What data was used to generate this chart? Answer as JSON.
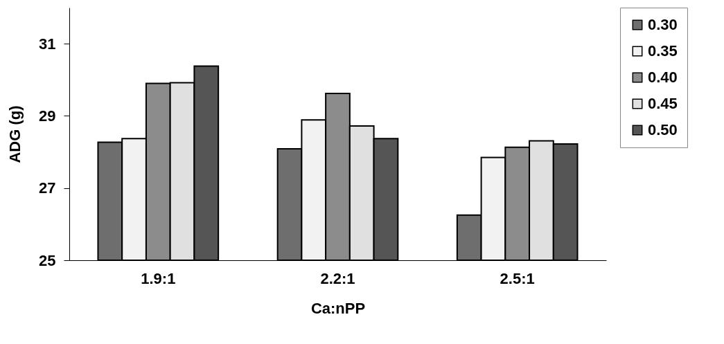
{
  "chart_data": {
    "type": "bar",
    "xlabel": "Ca:nPP",
    "ylabel": "ADG (g)",
    "categories": [
      "1.9:1",
      "2.2:1",
      "2.5:1"
    ],
    "series": [
      {
        "name": "0.30",
        "color": "#6e6e6e",
        "values": [
          28.27,
          28.09,
          26.25
        ]
      },
      {
        "name": "0.35",
        "color": "#f2f2f2",
        "values": [
          28.37,
          28.89,
          27.85
        ]
      },
      {
        "name": "0.40",
        "color": "#8c8c8c",
        "values": [
          29.9,
          29.62,
          28.13
        ]
      },
      {
        "name": "0.45",
        "color": "#e0e0e0",
        "values": [
          29.92,
          28.72,
          28.31
        ]
      },
      {
        "name": "0.50",
        "color": "#555555",
        "values": [
          30.38,
          28.37,
          28.22
        ]
      }
    ],
    "ylim": [
      25,
      32
    ],
    "yticks": [
      25,
      27,
      29,
      31
    ],
    "grid": false,
    "legend": "right"
  }
}
